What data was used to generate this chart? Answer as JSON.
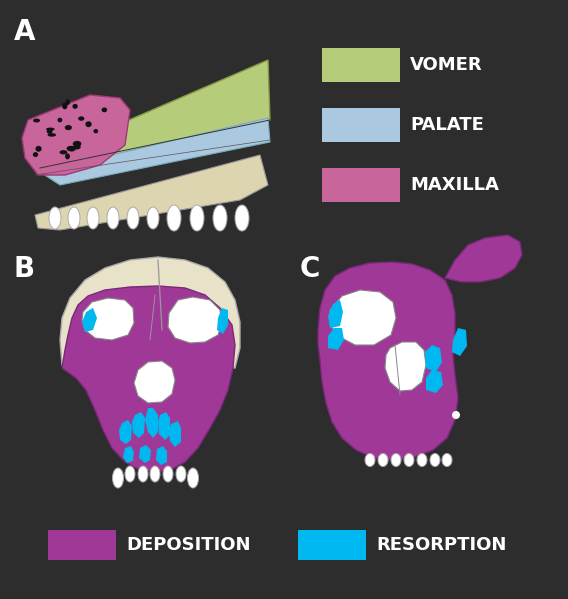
{
  "bg_color": "#2d2d2d",
  "vomer_color": "#b5cc7a",
  "palate_color": "#aac8df",
  "maxilla_color": "#c8659a",
  "deposition_color": "#a03898",
  "resorption_color": "#00b8f0",
  "skull_base_color": "#e8e2c8",
  "white": "#ffffff",
  "label_color": "#ffffff",
  "dark_outline": "#555555",
  "label_A": "A",
  "label_B": "B",
  "label_C": "C",
  "legend_top": [
    "VOMER",
    "PALATE",
    "MAXILLA"
  ],
  "legend_bot": [
    "DEPOSITION",
    "RESORPTION"
  ],
  "label_fontsize": 20,
  "legend_fontsize": 13
}
